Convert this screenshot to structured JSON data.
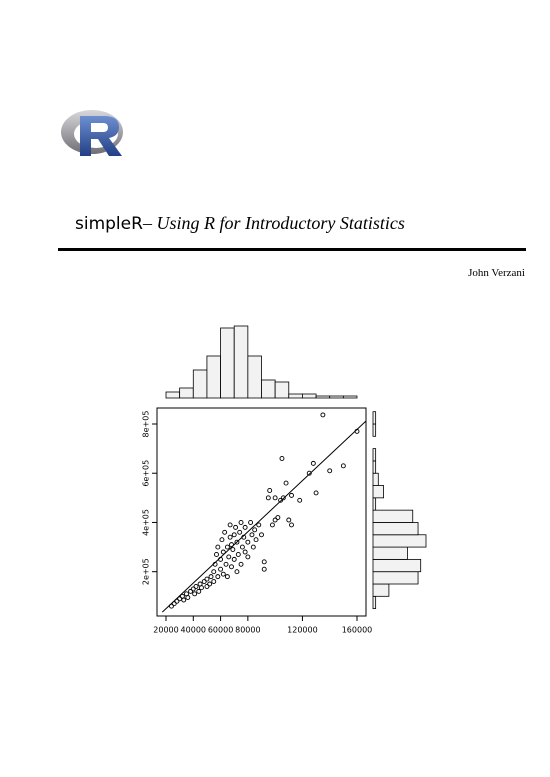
{
  "title": {
    "name": "simpleR",
    "subtitle": "– Using R for Introductory Statistics"
  },
  "author": "John Verzani",
  "chart_data": {
    "type": "scatter",
    "x": [
      24000,
      26000,
      28000,
      30000,
      32000,
      33000,
      35000,
      36000,
      38000,
      40000,
      41000,
      42000,
      44000,
      45000,
      46000,
      48000,
      50000,
      50000,
      52000,
      53000,
      55000,
      55000,
      56000,
      57000,
      58000,
      58000,
      60000,
      60000,
      61000,
      62000,
      62000,
      63000,
      64000,
      65000,
      65000,
      66000,
      67000,
      67000,
      68000,
      68000,
      69000,
      70000,
      70000,
      71000,
      72000,
      72000,
      73000,
      74000,
      75000,
      75000,
      76000,
      77000,
      78000,
      78000,
      80000,
      80000,
      82000,
      83000,
      84000,
      85000,
      86000,
      88000,
      90000,
      92000,
      92000,
      95000,
      96000,
      98000,
      100000,
      100000,
      102000,
      104000,
      105000,
      106000,
      108000,
      110000,
      112000,
      112000,
      118000,
      125000,
      128000,
      130000,
      135000,
      140000,
      150000,
      160000
    ],
    "y": [
      60000,
      70000,
      80000,
      90000,
      100000,
      85000,
      110000,
      95000,
      120000,
      130000,
      110000,
      140000,
      120000,
      150000,
      135000,
      160000,
      140000,
      170000,
      150000,
      180000,
      160000,
      200000,
      230000,
      270000,
      180000,
      300000,
      210000,
      250000,
      330000,
      190000,
      280000,
      360000,
      230000,
      300000,
      180000,
      260000,
      340000,
      390000,
      220000,
      310000,
      290000,
      250000,
      350000,
      380000,
      200000,
      320000,
      270000,
      360000,
      400000,
      230000,
      300000,
      340000,
      280000,
      380000,
      320000,
      260000,
      400000,
      350000,
      300000,
      370000,
      330000,
      390000,
      350000,
      240000,
      210000,
      500000,
      530000,
      390000,
      410000,
      500000,
      420000,
      490000,
      660000,
      500000,
      560000,
      410000,
      390000,
      510000,
      490000,
      600000,
      640000,
      520000,
      837000,
      610000,
      630000,
      770000
    ],
    "xlim": [
      13400,
      166600
    ],
    "ylim": [
      20000,
      865000
    ],
    "xticks": [
      20000,
      40000,
      60000,
      80000,
      120000,
      160000
    ],
    "yticks": [
      {
        "value": 200000,
        "label": "2e+05"
      },
      {
        "value": 400000,
        "label": "4e+05"
      },
      {
        "value": 600000,
        "label": "6e+05"
      },
      {
        "value": 800000,
        "label": "8e+05"
      }
    ],
    "fit_line": {
      "intercept": -54000,
      "slope": 5.2
    },
    "x_histogram": {
      "bins": [
        20000,
        30000,
        40000,
        50000,
        60000,
        70000,
        80000,
        90000,
        100000,
        110000,
        120000,
        130000,
        140000,
        150000,
        160000
      ],
      "counts": [
        3,
        5,
        14,
        21,
        35,
        36,
        21,
        9,
        8,
        2,
        2,
        1,
        1,
        1
      ]
    },
    "y_histogram": {
      "bins": [
        50000,
        100000,
        150000,
        200000,
        250000,
        300000,
        350000,
        400000,
        450000,
        500000,
        550000,
        600000,
        650000,
        700000,
        750000,
        800000,
        850000
      ],
      "counts": [
        1,
        6,
        17,
        18,
        13,
        20,
        17,
        15,
        1,
        4,
        2,
        1,
        1,
        0,
        1,
        1
      ]
    }
  }
}
